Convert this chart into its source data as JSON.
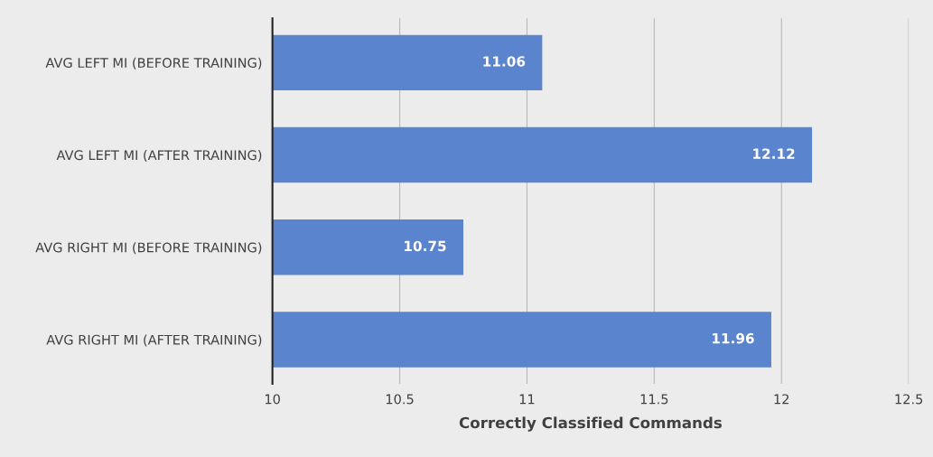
{
  "chart_data": {
    "type": "bar",
    "orientation": "horizontal",
    "xlabel": "Correctly Classified Commands",
    "categories": [
      "AVG LEFT MI (BEFORE TRAINING)",
      "AVG LEFT MI (AFTER TRAINING)",
      "AVG RIGHT MI (BEFORE TRAINING)",
      "AVG RIGHT MI (AFTER TRAINING)"
    ],
    "values": [
      11.06,
      12.12,
      10.75,
      11.96
    ],
    "color": "#5b84cf",
    "xlim": [
      10,
      12.5
    ],
    "xticks": [
      10,
      10.5,
      11,
      11.5,
      12,
      12.5
    ],
    "grid": "x",
    "data_labels": true
  }
}
